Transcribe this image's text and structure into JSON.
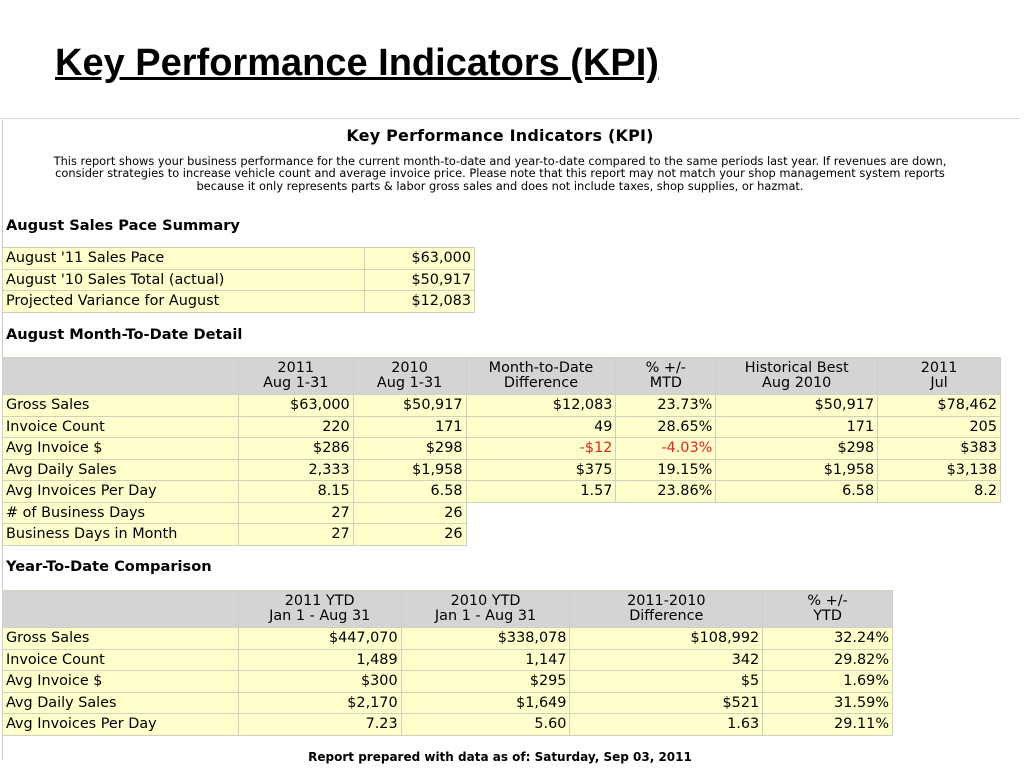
{
  "slide": {
    "title": "Key Performance Indicators (KPI)"
  },
  "report": {
    "title": "Key Performance Indicators (KPI)",
    "description": "This report shows your business performance for the current month-to-date and year-to-date compared to the same periods last year. If revenues are down, consider strategies to increase vehicle count and average invoice price. Please note that this report may not match your shop management system reports because it only represents parts & labor gross sales and does not include taxes, shop supplies, or hazmat.",
    "negative_color": "#e62020",
    "sales_pace": {
      "heading": "August Sales Pace Summary",
      "rows": [
        [
          "August '11 Sales Pace",
          "$63,000"
        ],
        [
          "August '10 Sales Total (actual)",
          "$50,917"
        ],
        [
          "Projected Variance for August",
          "$12,083"
        ]
      ]
    },
    "mtd": {
      "heading": "August Month-To-Date Detail",
      "columns": [
        [
          "2011",
          "Aug 1-31"
        ],
        [
          "2010",
          "Aug 1-31"
        ],
        [
          "Month-to-Date",
          "Difference"
        ],
        [
          "% +/-",
          "MTD"
        ],
        [
          "Historical Best",
          "Aug 2010"
        ],
        [
          "2011",
          "Jul"
        ]
      ],
      "rows": [
        [
          "Gross Sales",
          "$63,000",
          "$50,917",
          "$12,083",
          "23.73%",
          "$50,917",
          "$78,462"
        ],
        [
          "Invoice Count",
          "220",
          "171",
          "49",
          "28.65%",
          "171",
          "205"
        ],
        [
          "Avg Invoice $",
          "$286",
          "$298",
          "-$12",
          "-4.03%",
          "$298",
          "$383"
        ],
        [
          "Avg Daily Sales",
          "2,333",
          "$1,958",
          "$375",
          "19.15%",
          "$1,958",
          "$3,138"
        ],
        [
          "Avg Invoices Per Day",
          "8.15",
          "6.58",
          "1.57",
          "23.86%",
          "6.58",
          "8.2"
        ],
        [
          "# of Business Days",
          "27",
          "26"
        ],
        [
          "Business Days in Month",
          "27",
          "26"
        ]
      ]
    },
    "ytd": {
      "heading": "Year-To-Date Comparison",
      "columns": [
        [
          "2011 YTD",
          "Jan 1 - Aug 31"
        ],
        [
          "2010 YTD",
          "Jan 1 - Aug 31"
        ],
        [
          "2011-2010",
          "Difference"
        ],
        [
          "% +/-",
          "YTD"
        ]
      ],
      "rows": [
        [
          "Gross Sales",
          "$447,070",
          "$338,078",
          "$108,992",
          "32.24%"
        ],
        [
          "Invoice Count",
          "1,489",
          "1,147",
          "342",
          "29.82%"
        ],
        [
          "Avg Invoice $",
          "$300",
          "$295",
          "$5",
          "1.69%"
        ],
        [
          "Avg Daily Sales",
          "$2,170",
          "$1,649",
          "$521",
          "31.59%"
        ],
        [
          "Avg Invoices Per Day",
          "7.23",
          "5.60",
          "1.63",
          "29.11%"
        ]
      ]
    },
    "footer": "Report prepared with data as of: Saturday, Sep 03, 2011"
  }
}
